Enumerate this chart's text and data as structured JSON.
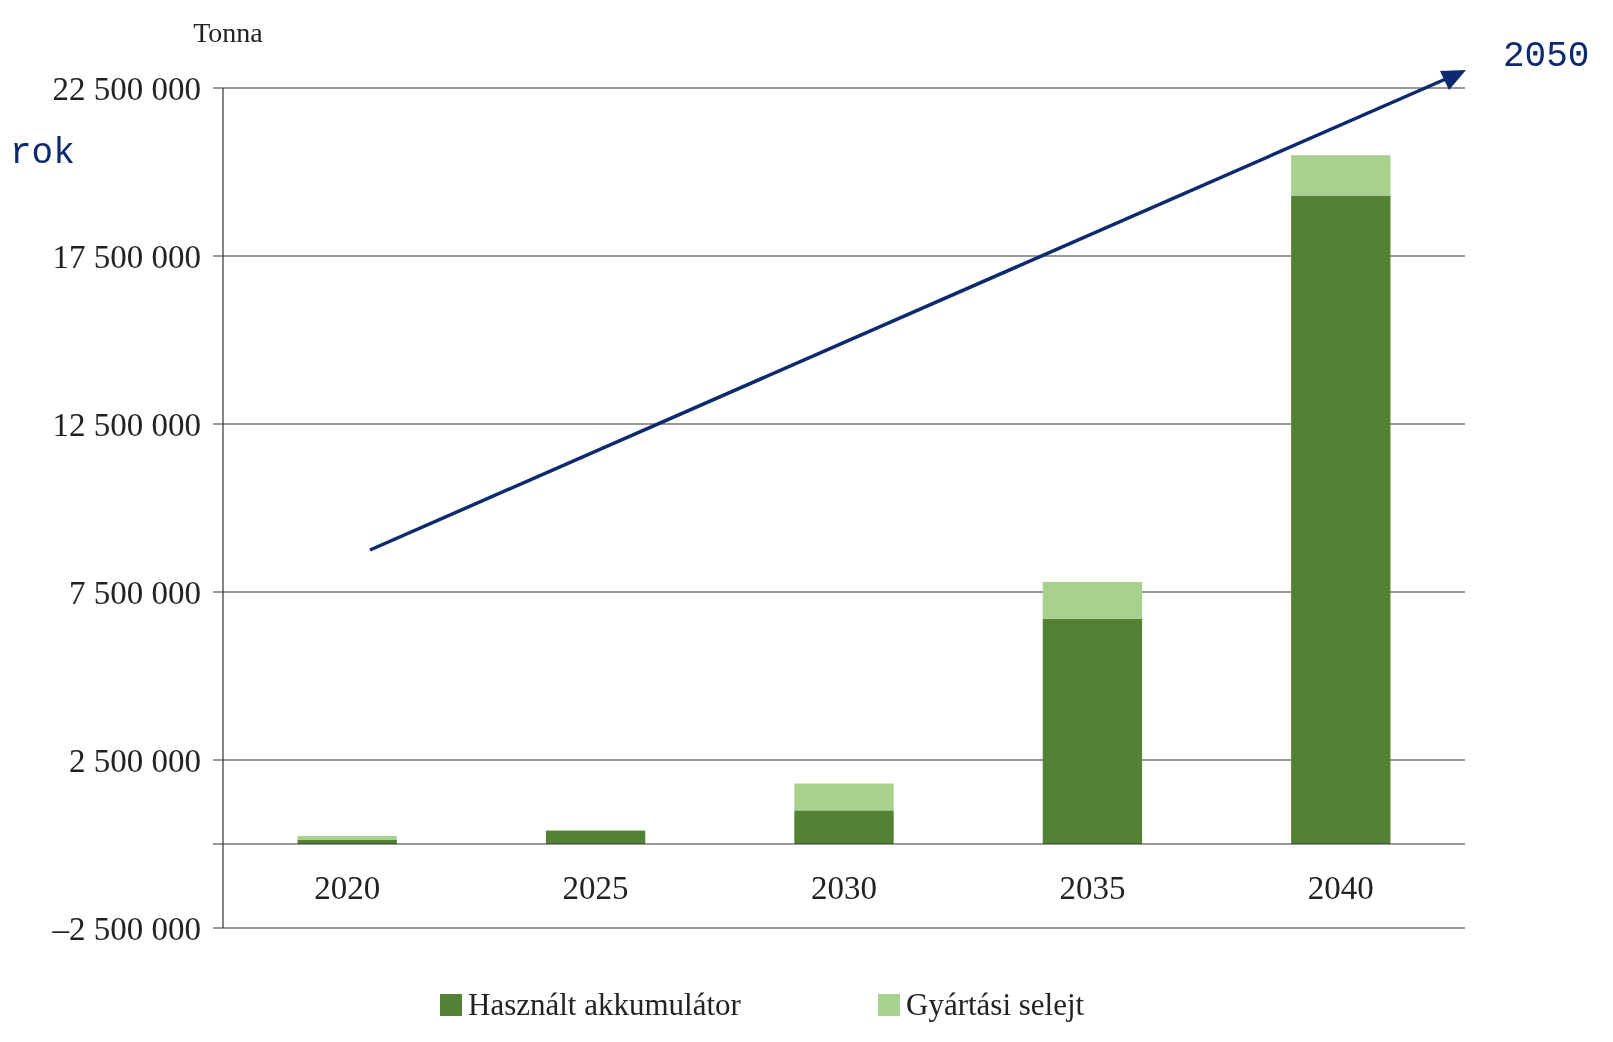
{
  "chart_data": {
    "type": "bar",
    "ylabel": "Tonna",
    "categories": [
      "2020",
      "2025",
      "2030",
      "2035",
      "2040"
    ],
    "series": [
      {
        "name": "Használt akkumulátor",
        "color": "#548235",
        "values": [
          120000,
          400000,
          1000000,
          6700000,
          19300000
        ]
      },
      {
        "name": "Gyártási selejt",
        "color": "#a9d18e",
        "values": [
          120000,
          0,
          800000,
          1100000,
          1200000
        ]
      }
    ],
    "stacked": true,
    "ylim": [
      -2500000,
      22500000
    ],
    "yticks": [
      {
        "value": -2500000,
        "label": "–2 500 000"
      },
      {
        "value": 2500000,
        "label": "2 500 000"
      },
      {
        "value": 7500000,
        "label": "7 500 000"
      },
      {
        "value": 12500000,
        "label": "12 500 000"
      },
      {
        "value": 17500000,
        "label": "17 500 000"
      },
      {
        "value": 22500000,
        "label": "22 500 000"
      }
    ],
    "grid": "y",
    "legend": "bottom",
    "annotations": [
      "rok",
      "2050"
    ]
  }
}
